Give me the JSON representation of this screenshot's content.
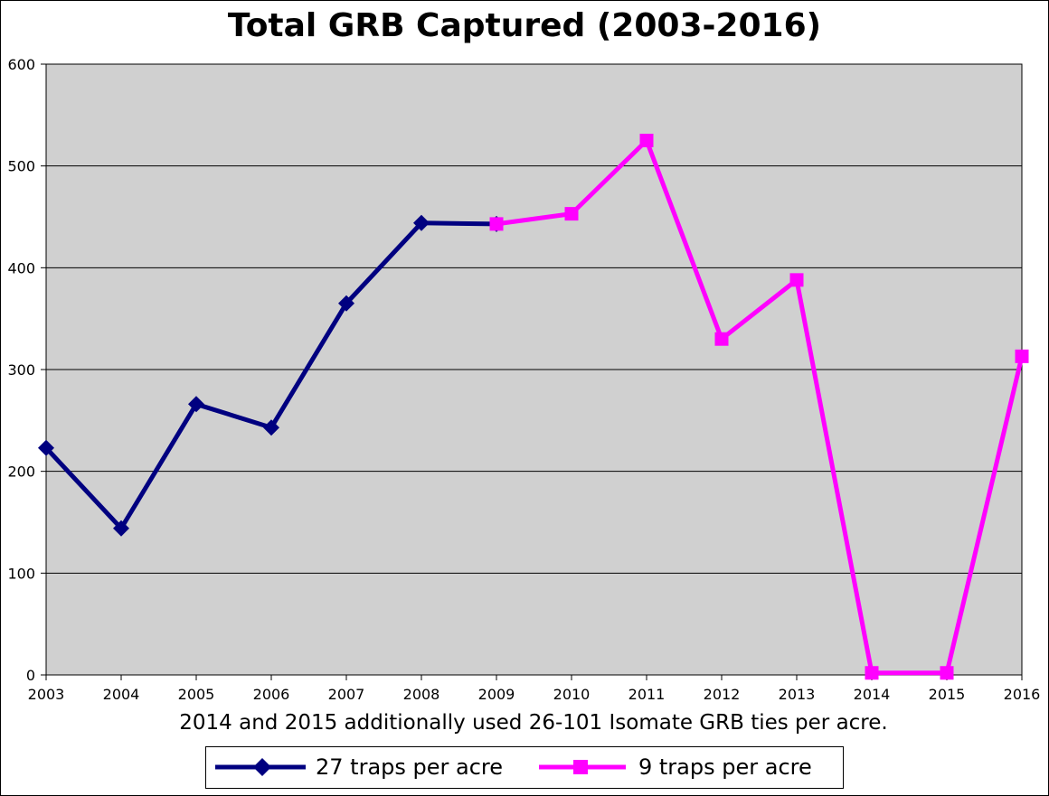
{
  "chart_data": {
    "type": "line",
    "title": "Total GRB Captured (2003-2016)",
    "xlabel": "2014 and 2015 additionally used 26-101 Isomate GRB ties per acre.",
    "ylabel": "",
    "categories": [
      "2003",
      "2004",
      "2005",
      "2006",
      "2007",
      "2008",
      "2009",
      "2010",
      "2011",
      "2012",
      "2013",
      "2014",
      "2015",
      "2016"
    ],
    "ylim": [
      0,
      600
    ],
    "yticks": [
      0,
      100,
      200,
      300,
      400,
      500,
      600
    ],
    "grid": "horizontal",
    "plot_background": "#d0d0d0",
    "legend_position": "bottom",
    "series": [
      {
        "name": "27 traps per acre",
        "color": "#000080",
        "marker": "diamond",
        "values": [
          223,
          144,
          266,
          243,
          365,
          444,
          443,
          null,
          null,
          null,
          null,
          null,
          null,
          null
        ]
      },
      {
        "name": "9 traps per acre",
        "color": "#ff00ff",
        "marker": "square",
        "values": [
          null,
          null,
          null,
          null,
          null,
          null,
          443,
          453,
          525,
          330,
          388,
          2,
          2,
          313
        ]
      }
    ]
  }
}
